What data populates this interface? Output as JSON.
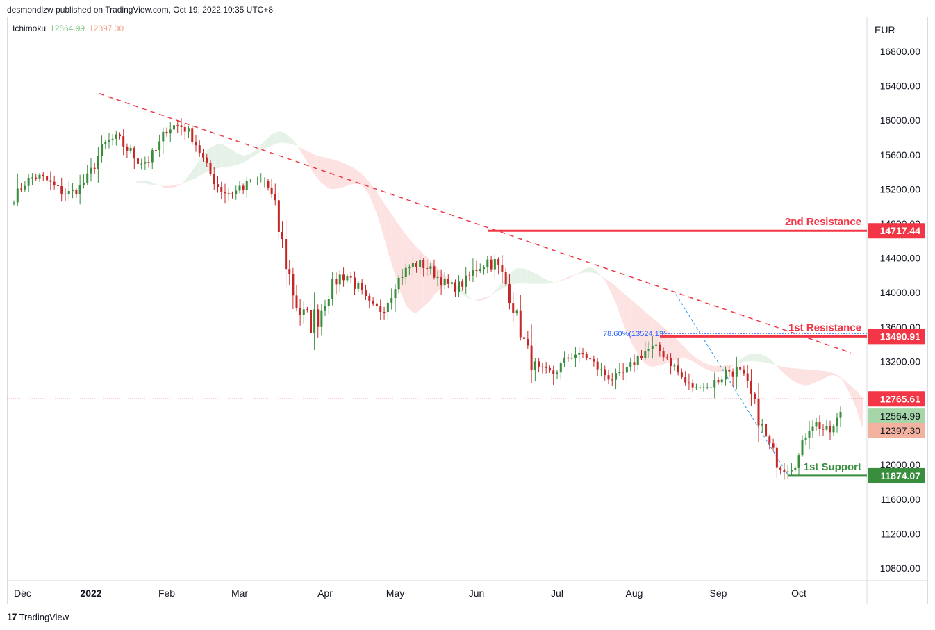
{
  "header": {
    "published": "desmondlzw published on TradingView.com, Oct 19, 2022 10:35 UTC+8"
  },
  "legend": {
    "name": "Ichimoku",
    "value1": "12564.99",
    "value2": "12397.30"
  },
  "footer": {
    "brand": "TradingView",
    "logo": "17"
  },
  "colors": {
    "up": "#26a69a",
    "down": "#ef5350",
    "candle_up": "#388e3c",
    "candle_down": "#c62828",
    "resistance": "#f23645",
    "support": "#388e3c",
    "cloud_bull": "#e6f2e7",
    "cloud_bear": "#fde2e2",
    "last_price": "#f23645",
    "ichimoku_a": "#a5d6a7",
    "ichimoku_b": "#f2b29f"
  },
  "chart_data": {
    "type": "candlestick",
    "currency": "EUR",
    "ylim": [
      10600,
      17200
    ],
    "y_ticks": [
      "16800.00",
      "16400.00",
      "16000.00",
      "15600.00",
      "15200.00",
      "14800.00",
      "14400.00",
      "14000.00",
      "13600.00",
      "13200.00",
      "12800.00",
      "12400.00",
      "12000.00",
      "11600.00",
      "11200.00",
      "10800.00"
    ],
    "x_ticks": [
      "Dec",
      "2022",
      "Feb",
      "Mar",
      "Apr",
      "May",
      "Jun",
      "Jul",
      "Aug",
      "Sep",
      "Oct"
    ],
    "price_labels": [
      {
        "value": 14717.44,
        "text": "14717.44",
        "kind": "resistance"
      },
      {
        "value": 13490.91,
        "text": "13490.91",
        "kind": "resistance"
      },
      {
        "value": 12765.61,
        "text": "12765.61",
        "kind": "last"
      },
      {
        "value": 12564.99,
        "text": "12564.99",
        "kind": "ichimoku_a"
      },
      {
        "value": 12397.3,
        "text": "12397.30",
        "kind": "ichimoku_b"
      },
      {
        "value": 11874.07,
        "text": "11874.07",
        "kind": "support"
      }
    ],
    "levels": [
      {
        "label": "2nd Resistance",
        "value": 14717.44,
        "kind": "resistance",
        "from": "Jun"
      },
      {
        "label": "1st Resistance",
        "value": 13490.91,
        "kind": "resistance",
        "from": "Aug"
      },
      {
        "label": "1st Support",
        "value": 11874.07,
        "kind": "support",
        "from": "Oct"
      }
    ],
    "fib_label": "78.60%(13524.13)",
    "fib_value": 13524.13,
    "last_price": 12765.61,
    "trendline": {
      "from": {
        "month": "Jan",
        "price": 16310
      },
      "to": {
        "month": "Oct",
        "price": 13300
      }
    },
    "ohlc_approx": [
      {
        "month": "Dec",
        "open": 15100,
        "high": 15900,
        "low": 15000,
        "close": 15400
      },
      {
        "month": "Jan",
        "open": 15400,
        "high": 16310,
        "low": 15000,
        "close": 15900
      },
      {
        "month": "Feb",
        "open": 15900,
        "high": 16000,
        "low": 15000,
        "close": 15200
      },
      {
        "month": "Mar",
        "open": 15200,
        "high": 15300,
        "low": 12400,
        "close": 13900
      },
      {
        "month": "Apr",
        "open": 13900,
        "high": 14900,
        "low": 13500,
        "close": 14100
      },
      {
        "month": "May",
        "open": 14100,
        "high": 14600,
        "low": 13600,
        "close": 14300
      },
      {
        "month": "Jun",
        "open": 14300,
        "high": 14720,
        "low": 13000,
        "close": 13100
      },
      {
        "month": "Jul",
        "open": 13100,
        "high": 13300,
        "low": 12380,
        "close": 13200
      },
      {
        "month": "Aug",
        "open": 13200,
        "high": 13980,
        "low": 12900,
        "close": 13000
      },
      {
        "month": "Sep",
        "open": 13000,
        "high": 13500,
        "low": 11870,
        "close": 12100
      },
      {
        "month": "Oct",
        "open": 12100,
        "high": 12930,
        "low": 11900,
        "close": 12765.61
      }
    ]
  }
}
